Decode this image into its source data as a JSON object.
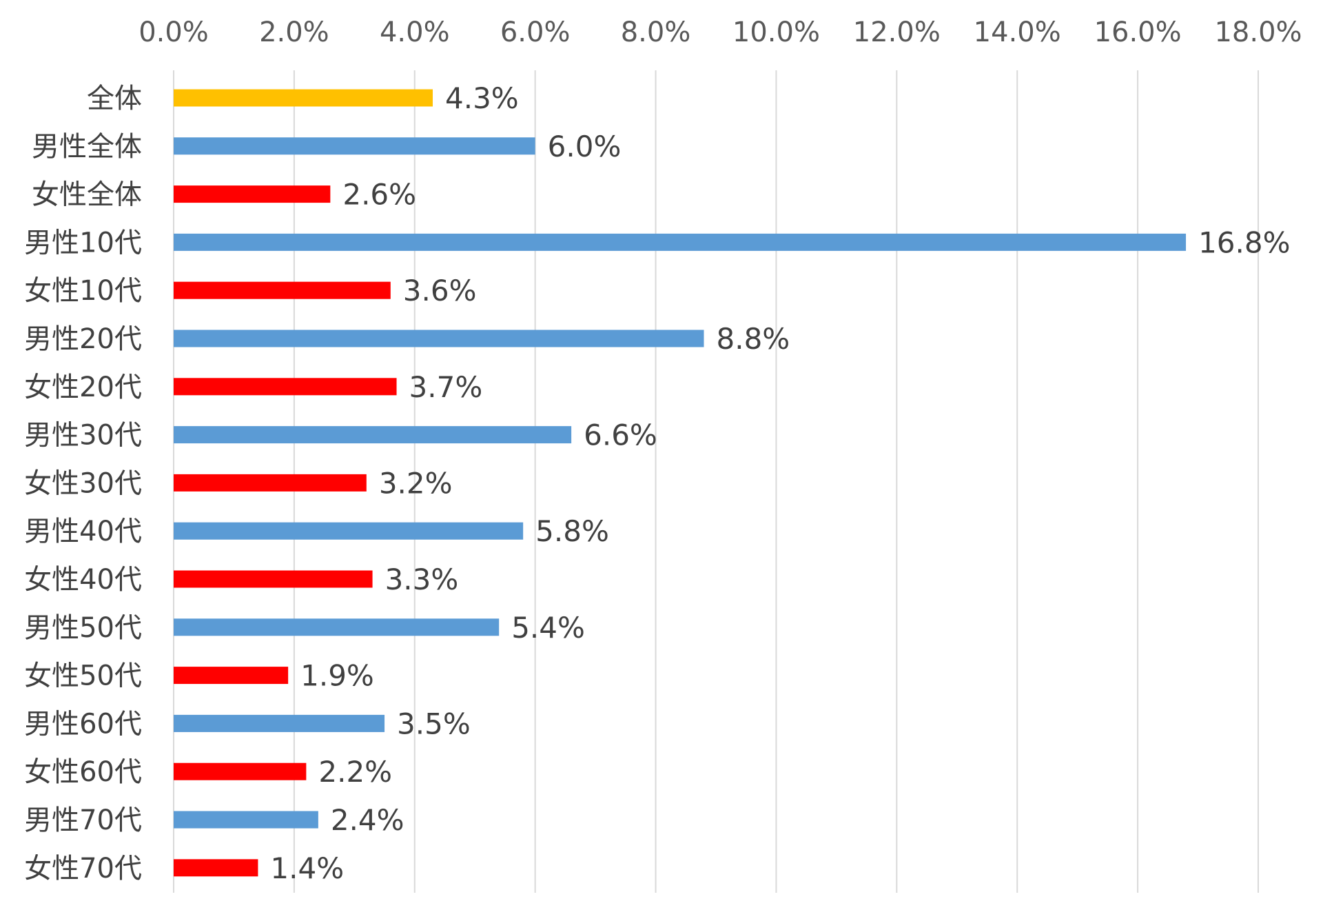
{
  "chart_data": {
    "type": "bar",
    "orientation": "horizontal",
    "title": "",
    "xlabel": "",
    "ylabel": "",
    "xlim": [
      0,
      18
    ],
    "x_ticks": [
      0,
      2,
      4,
      6,
      8,
      10,
      12,
      14,
      16,
      18
    ],
    "x_tick_labels": [
      "0.0%",
      "2.0%",
      "4.0%",
      "6.0%",
      "8.0%",
      "10.0%",
      "12.0%",
      "14.0%",
      "16.0%",
      "18.0%"
    ],
    "x_axis_position": "top",
    "grid": true,
    "legend": "none",
    "categories": [
      "全体",
      "男性全体",
      "女性全体",
      "男性10代",
      "女性10代",
      "男性20代",
      "女性20代",
      "男性30代",
      "女性30代",
      "男性40代",
      "女性40代",
      "男性50代",
      "女性50代",
      "男性60代",
      "女性60代",
      "男性70代",
      "女性70代"
    ],
    "values": [
      4.3,
      6.0,
      2.6,
      16.8,
      3.6,
      8.8,
      3.7,
      6.6,
      3.2,
      5.8,
      3.3,
      5.4,
      1.9,
      3.5,
      2.2,
      2.4,
      1.4
    ],
    "data_labels": [
      "4.3%",
      "6.0%",
      "2.6%",
      "16.8%",
      "3.6%",
      "8.8%",
      "3.7%",
      "6.6%",
      "3.2%",
      "5.8%",
      "3.3%",
      "5.4%",
      "1.9%",
      "3.5%",
      "2.2%",
      "2.4%",
      "1.4%"
    ],
    "bar_groups": [
      "total",
      "male",
      "female",
      "male",
      "female",
      "male",
      "female",
      "male",
      "female",
      "male",
      "female",
      "male",
      "female",
      "male",
      "female",
      "male",
      "female"
    ],
    "colors": {
      "total": "#FFC000",
      "male": "#5B9BD5",
      "female": "#FF0000",
      "gridline": "#D9D9D9",
      "tick_text": "#595959",
      "label_text": "#404040"
    }
  }
}
